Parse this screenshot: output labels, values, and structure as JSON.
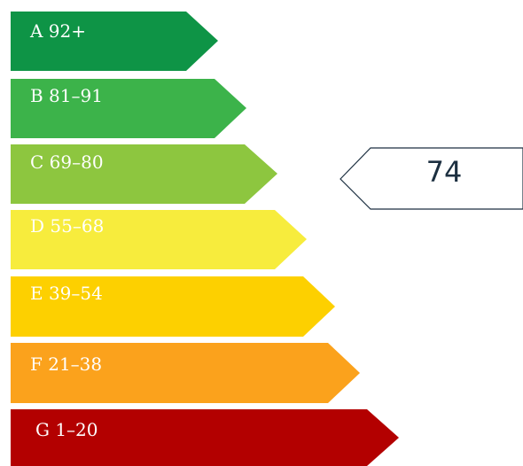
{
  "rating": {
    "bands": [
      {
        "label": "A 92+",
        "color": "#0e9446"
      },
      {
        "label": "B 81–91",
        "color": "#3cb34a"
      },
      {
        "label": "C 69–80",
        "color": "#8dc63f"
      },
      {
        "label": "D 55–68",
        "color": "#f7ec3d"
      },
      {
        "label": "E 39–54",
        "color": "#fdd000"
      },
      {
        "label": "F 21–38",
        "color": "#fba21c"
      },
      {
        "label": "G 1–20",
        "color": "#b30000"
      }
    ],
    "current_score": "74",
    "current_band": "C"
  }
}
